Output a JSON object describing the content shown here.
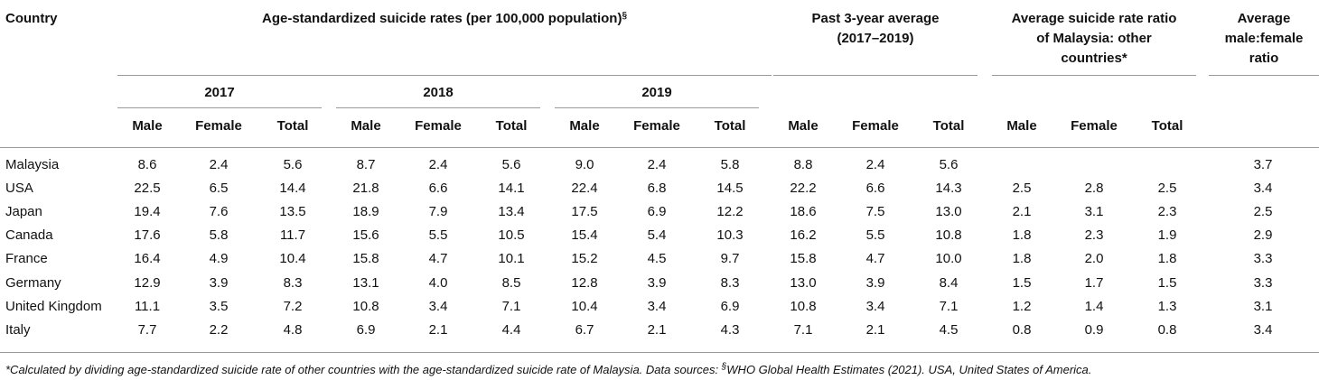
{
  "table": {
    "header": {
      "country": "Country",
      "rates_title": "Age-standardized suicide rates (per 100,000 population)",
      "rates_title_mark": "§",
      "past_avg_line1": "Past 3-year average",
      "past_avg_line2": "(2017–2019)",
      "ratio_line1": "Average suicide rate ratio",
      "ratio_line2": "of Malaysia: other",
      "ratio_line3": "countries*",
      "mf_line1": "Average",
      "mf_line2": "male:female",
      "mf_line3": "ratio",
      "years": [
        "2017",
        "2018",
        "2019"
      ],
      "sub": [
        "Male",
        "Female",
        "Total"
      ]
    },
    "rows": [
      {
        "country": "Malaysia",
        "values": [
          "8.6",
          "2.4",
          "5.6",
          "8.7",
          "2.4",
          "5.6",
          "9.0",
          "2.4",
          "5.8",
          "8.8",
          "2.4",
          "5.6",
          "",
          "",
          "",
          "3.7"
        ]
      },
      {
        "country": "USA",
        "values": [
          "22.5",
          "6.5",
          "14.4",
          "21.8",
          "6.6",
          "14.1",
          "22.4",
          "6.8",
          "14.5",
          "22.2",
          "6.6",
          "14.3",
          "2.5",
          "2.8",
          "2.5",
          "3.4"
        ]
      },
      {
        "country": "Japan",
        "values": [
          "19.4",
          "7.6",
          "13.5",
          "18.9",
          "7.9",
          "13.4",
          "17.5",
          "6.9",
          "12.2",
          "18.6",
          "7.5",
          "13.0",
          "2.1",
          "3.1",
          "2.3",
          "2.5"
        ]
      },
      {
        "country": "Canada",
        "values": [
          "17.6",
          "5.8",
          "11.7",
          "15.6",
          "5.5",
          "10.5",
          "15.4",
          "5.4",
          "10.3",
          "16.2",
          "5.5",
          "10.8",
          "1.8",
          "2.3",
          "1.9",
          "2.9"
        ]
      },
      {
        "country": "France",
        "values": [
          "16.4",
          "4.9",
          "10.4",
          "15.8",
          "4.7",
          "10.1",
          "15.2",
          "4.5",
          "9.7",
          "15.8",
          "4.7",
          "10.0",
          "1.8",
          "2.0",
          "1.8",
          "3.3"
        ]
      },
      {
        "country": "Germany",
        "values": [
          "12.9",
          "3.9",
          "8.3",
          "13.1",
          "4.0",
          "8.5",
          "12.8",
          "3.9",
          "8.3",
          "13.0",
          "3.9",
          "8.4",
          "1.5",
          "1.7",
          "1.5",
          "3.3"
        ]
      },
      {
        "country": "United Kingdom",
        "values": [
          "11.1",
          "3.5",
          "7.2",
          "10.8",
          "3.4",
          "7.1",
          "10.4",
          "3.4",
          "6.9",
          "10.8",
          "3.4",
          "7.1",
          "1.2",
          "1.4",
          "1.3",
          "3.1"
        ]
      },
      {
        "country": "Italy",
        "values": [
          "7.7",
          "2.2",
          "4.8",
          "6.9",
          "2.1",
          "4.4",
          "6.7",
          "2.1",
          "4.3",
          "7.1",
          "2.1",
          "4.5",
          "0.8",
          "0.9",
          "0.8",
          "3.4"
        ]
      }
    ]
  },
  "footnote": {
    "part1": "*Calculated by dividing age-standardized suicide rate of other countries with the age-standardized suicide rate of Malaysia. Data sources: ",
    "mark": "§",
    "part2": "WHO Global Health Estimates (2021). USA, United States of America."
  }
}
